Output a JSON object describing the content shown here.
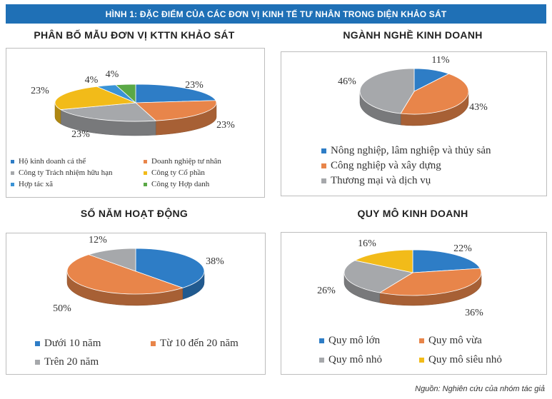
{
  "header": {
    "title": "HÌNH 1: ĐẶC ĐIỂM CỦA CÁC ĐƠN VỊ KINH TẾ TƯ NHÂN TRONG DIỆN KHẢO SÁT"
  },
  "source": "Nguồn: Nghiên cứu của nhóm tác giả",
  "chart_data": [
    {
      "type": "pie",
      "title": "PHÂN BỐ MẪU ĐƠN VỊ KTTN KHẢO SÁT",
      "slices": [
        {
          "name": "Hộ kinh doanh cá thể",
          "value": 23,
          "label": "23%",
          "color": "#2e7dc6"
        },
        {
          "name": "Doanh nghiệp tư nhân",
          "value": 23,
          "label": "23%",
          "color": "#e8854a"
        },
        {
          "name": "Công ty Trách nhiệm hữu hạn",
          "value": 23,
          "label": "23%",
          "color": "#a6a8ab"
        },
        {
          "name": "Công ty Cổ phần",
          "value": 23,
          "label": "23%",
          "color": "#f2bb19"
        },
        {
          "name": "Hợp tác xã",
          "value": 4,
          "label": "4%",
          "color": "#3a93d6"
        },
        {
          "name": "Công ty Hợp danh",
          "value": 4,
          "label": "4%",
          "color": "#5aa846"
        }
      ]
    },
    {
      "type": "pie",
      "title": "NGÀNH NGHỀ KINH DOANH",
      "slices": [
        {
          "name": "Nông nghiệp, lâm nghiệp và thủy sản",
          "value": 11,
          "label": "11%",
          "color": "#2e7dc6"
        },
        {
          "name": "Công nghiệp và xây dựng",
          "value": 43,
          "label": "43%",
          "color": "#e8854a"
        },
        {
          "name": "Thương mại và dịch vụ",
          "value": 46,
          "label": "46%",
          "color": "#a6a8ab"
        }
      ]
    },
    {
      "type": "pie",
      "title": "SỐ NĂM HOẠT ĐỘNG",
      "slices": [
        {
          "name": "Dưới 10 năm",
          "value": 38,
          "label": "38%",
          "color": "#2e7dc6"
        },
        {
          "name": "Từ 10 đến 20 năm",
          "value": 50,
          "label": "50%",
          "color": "#e8854a"
        },
        {
          "name": "Trên 20 năm",
          "value": 12,
          "label": "12%",
          "color": "#a6a8ab"
        }
      ]
    },
    {
      "type": "pie",
      "title": "QUY MÔ KINH DOANH",
      "slices": [
        {
          "name": "Quy mô lớn",
          "value": 22,
          "label": "22%",
          "color": "#2e7dc6"
        },
        {
          "name": "Quy mô vừa",
          "value": 36,
          "label": "36%",
          "color": "#e8854a"
        },
        {
          "name": "Quy mô nhỏ",
          "value": 26,
          "label": "26%",
          "color": "#a6a8ab"
        },
        {
          "name": "Quy mô siêu nhỏ",
          "value": 16,
          "label": "16%",
          "color": "#f2bb19"
        }
      ]
    }
  ]
}
